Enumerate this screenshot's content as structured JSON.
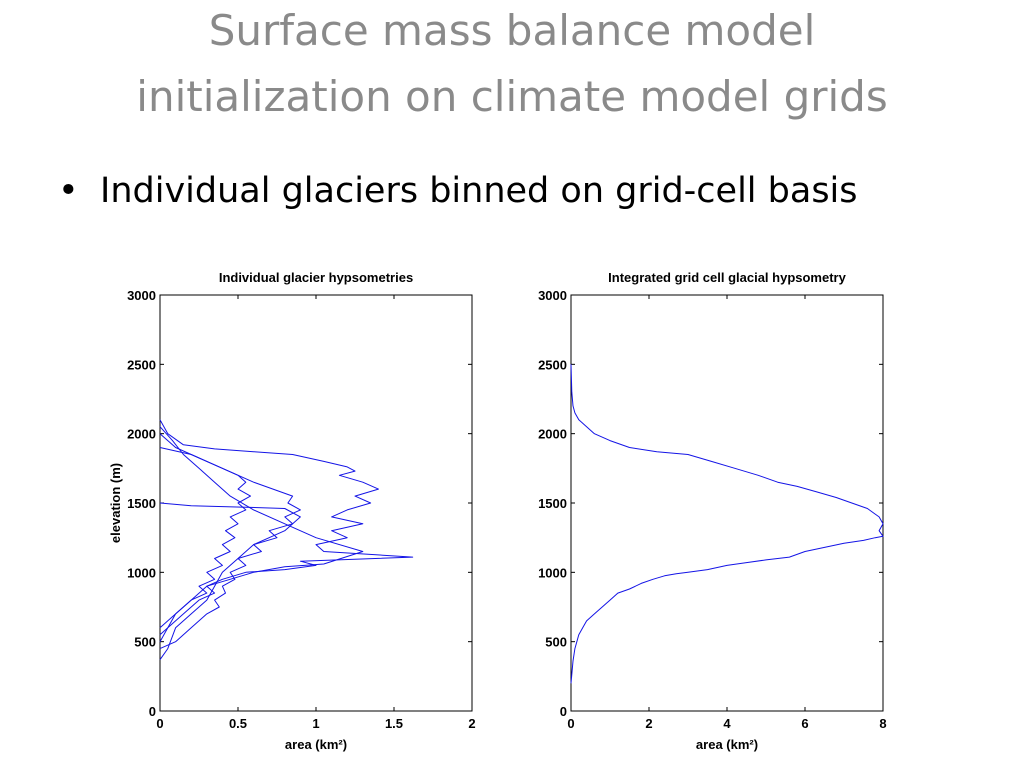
{
  "slide": {
    "title_lines": [
      "Surface mass balance model",
      "initialization on climate model grids"
    ],
    "bullet_symbol": "•",
    "bullet_text": "Individual glaciers binned on grid-cell basis"
  },
  "colors": {
    "title": "#8a8a8a",
    "text": "#000000",
    "series": "#1414e6"
  },
  "chart_data": [
    {
      "type": "line",
      "title": "Individual glacier hypsometries",
      "xlabel": "area (km²)",
      "ylabel": "elevation (m)",
      "xlim": [
        0,
        2
      ],
      "ylim": [
        0,
        3000
      ],
      "xticks": [
        0,
        0.5,
        1,
        1.5,
        2
      ],
      "xtick_labels": [
        "0",
        "0.5",
        "1",
        "1.5",
        "2"
      ],
      "yticks": [
        0,
        500,
        1000,
        1500,
        2000,
        2500,
        3000
      ],
      "ytick_labels": [
        "0",
        "500",
        "1000",
        "1500",
        "2000",
        "2500",
        "3000"
      ],
      "grid": false,
      "series": [
        {
          "x": [
            0,
            0.05,
            0.15,
            0.35,
            0.6,
            0.85,
            1.05,
            1.2,
            1.25,
            1.15,
            1.3,
            1.4,
            1.25,
            1.35,
            1.2,
            1.1,
            1.3,
            1.1,
            1.2,
            1.0,
            1.05,
            1.62,
            0.9,
            1.0,
            0.8,
            0.55,
            0.4,
            0.3,
            0.35,
            0.25,
            0.15,
            0.05,
            0
          ],
          "y": [
            2100,
            2000,
            1920,
            1890,
            1870,
            1850,
            1800,
            1760,
            1730,
            1700,
            1650,
            1600,
            1550,
            1500,
            1450,
            1400,
            1350,
            1300,
            1250,
            1200,
            1150,
            1110,
            1080,
            1050,
            1020,
            1000,
            950,
            900,
            850,
            800,
            700,
            600,
            500
          ]
        },
        {
          "x": [
            0,
            0.1,
            0.3,
            0.5,
            0.55,
            0.5,
            0.58,
            0.5,
            0.55,
            0.45,
            0.5,
            0.42,
            0.48,
            0.4,
            0.45,
            0.35,
            0.4,
            0.3,
            0.35,
            0.25,
            0.3,
            0.2,
            0.1,
            0
          ],
          "y": [
            2000,
            1900,
            1800,
            1700,
            1650,
            1600,
            1550,
            1500,
            1450,
            1400,
            1350,
            1300,
            1250,
            1200,
            1150,
            1100,
            1050,
            1000,
            950,
            900,
            850,
            800,
            700,
            600
          ]
        },
        {
          "x": [
            0,
            0.2,
            0.4,
            0.6,
            0.85,
            0.82,
            0.9,
            0.8,
            0.85,
            0.7,
            0.75,
            0.6,
            0.65,
            0.5,
            0.55,
            0.45,
            0.48,
            0.4,
            0.42,
            0.35,
            0.38,
            0.3,
            0.2,
            0.1,
            0
          ],
          "y": [
            1900,
            1850,
            1750,
            1650,
            1550,
            1500,
            1450,
            1400,
            1350,
            1300,
            1250,
            1200,
            1150,
            1100,
            1050,
            1000,
            950,
            900,
            850,
            800,
            750,
            700,
            600,
            500,
            450
          ]
        },
        {
          "x": [
            0,
            0.2,
            0.55,
            0.8,
            0.9,
            0.8,
            0.6,
            0.5,
            0.4,
            0.35,
            0.3,
            0.2,
            0.1,
            0.05,
            0
          ],
          "y": [
            1500,
            1480,
            1470,
            1460,
            1400,
            1300,
            1200,
            1100,
            1000,
            900,
            800,
            700,
            600,
            450,
            370
          ]
        },
        {
          "x": [
            0,
            0.08,
            0.15,
            0.25,
            0.35,
            0.45,
            0.6,
            0.8,
            1.0,
            1.3,
            1.05,
            0.8,
            0.6,
            0.45,
            0.3,
            0.2,
            0.1,
            0.05,
            0
          ],
          "y": [
            2050,
            1950,
            1850,
            1750,
            1650,
            1550,
            1450,
            1350,
            1250,
            1150,
            1060,
            1040,
            1000,
            950,
            900,
            800,
            700,
            600,
            550
          ]
        }
      ]
    },
    {
      "type": "line",
      "title": "Integrated grid cell glacial hypsometry",
      "xlabel": "area (km²)",
      "ylabel": "",
      "xlim": [
        0,
        8
      ],
      "ylim": [
        0,
        3000
      ],
      "xticks": [
        0,
        2,
        4,
        6,
        8
      ],
      "xtick_labels": [
        "0",
        "2",
        "4",
        "6",
        "8"
      ],
      "yticks": [
        0,
        500,
        1000,
        1500,
        2000,
        2500,
        3000
      ],
      "ytick_labels": [
        "0",
        "500",
        "1000",
        "1500",
        "2000",
        "2500",
        "3000"
      ],
      "grid": false,
      "series": [
        {
          "x": [
            0,
            0.02,
            0.05,
            0.1,
            0.2,
            0.4,
            0.6,
            1.0,
            1.5,
            2.2,
            3.0,
            3.6,
            4.2,
            4.8,
            5.3,
            5.8,
            6.3,
            6.8,
            7.2,
            7.6,
            7.8,
            7.9,
            8.0,
            7.9,
            8.0,
            7.8,
            7.5,
            7.0,
            6.5,
            6.0,
            5.6,
            5.0,
            4.5,
            4.0,
            3.5,
            3.0,
            2.7,
            2.4,
            2.1,
            1.8,
            1.5,
            1.2,
            1.0,
            0.8,
            0.6,
            0.4,
            0.3,
            0.2,
            0.1,
            0.05,
            0
          ],
          "y": [
            2500,
            2300,
            2200,
            2150,
            2100,
            2050,
            2000,
            1950,
            1900,
            1870,
            1850,
            1800,
            1750,
            1700,
            1650,
            1620,
            1580,
            1540,
            1500,
            1460,
            1420,
            1400,
            1350,
            1300,
            1260,
            1250,
            1230,
            1210,
            1180,
            1150,
            1110,
            1090,
            1070,
            1050,
            1020,
            1000,
            990,
            975,
            950,
            920,
            880,
            850,
            800,
            750,
            700,
            650,
            600,
            550,
            450,
            360,
            200
          ]
        }
      ]
    }
  ]
}
